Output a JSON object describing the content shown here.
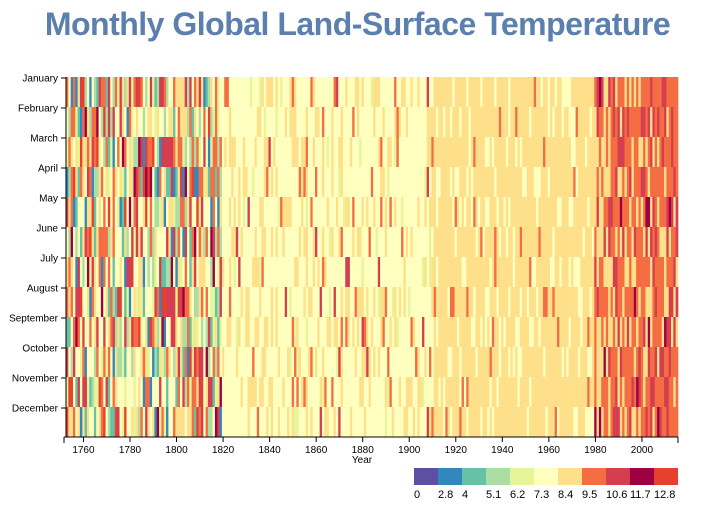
{
  "chart_data": {
    "type": "heatmap",
    "title": "Monthly Global Land-Surface Temperature",
    "xlabel": "Year",
    "ylabel": "",
    "x_range": [
      1753,
      2015
    ],
    "x_ticks": [
      1760,
      1780,
      1800,
      1820,
      1840,
      1860,
      1880,
      1900,
      1920,
      1940,
      1960,
      1980,
      2000
    ],
    "months": [
      "January",
      "February",
      "March",
      "April",
      "May",
      "June",
      "July",
      "August",
      "September",
      "October",
      "November",
      "December"
    ],
    "legend": {
      "thresholds": [
        "0",
        "2.8",
        "4",
        "5.1",
        "6.2",
        "7.3",
        "8.4",
        "9.5",
        "10.6",
        "11.7",
        "12.8"
      ],
      "colors": [
        "#5e4fa2",
        "#3288bd",
        "#66c2a5",
        "#abdda4",
        "#e6f598",
        "#ffffbf",
        "#fee08b",
        "#f46d43",
        "#d53e4f",
        "#9e0142",
        "#e8402f"
      ]
    },
    "pattern": "Each cell is the land-surface temperature anomaly bucket for one month of one year; early years (1753-1820) are noisy with cool and hot extremes, 1820-1910 mostly pale yellow (7.3-8.4), 1910-1980 mostly light orange (8.4-9.5), 1980-2015 increasingly orange-red (9.5-11.7)."
  }
}
